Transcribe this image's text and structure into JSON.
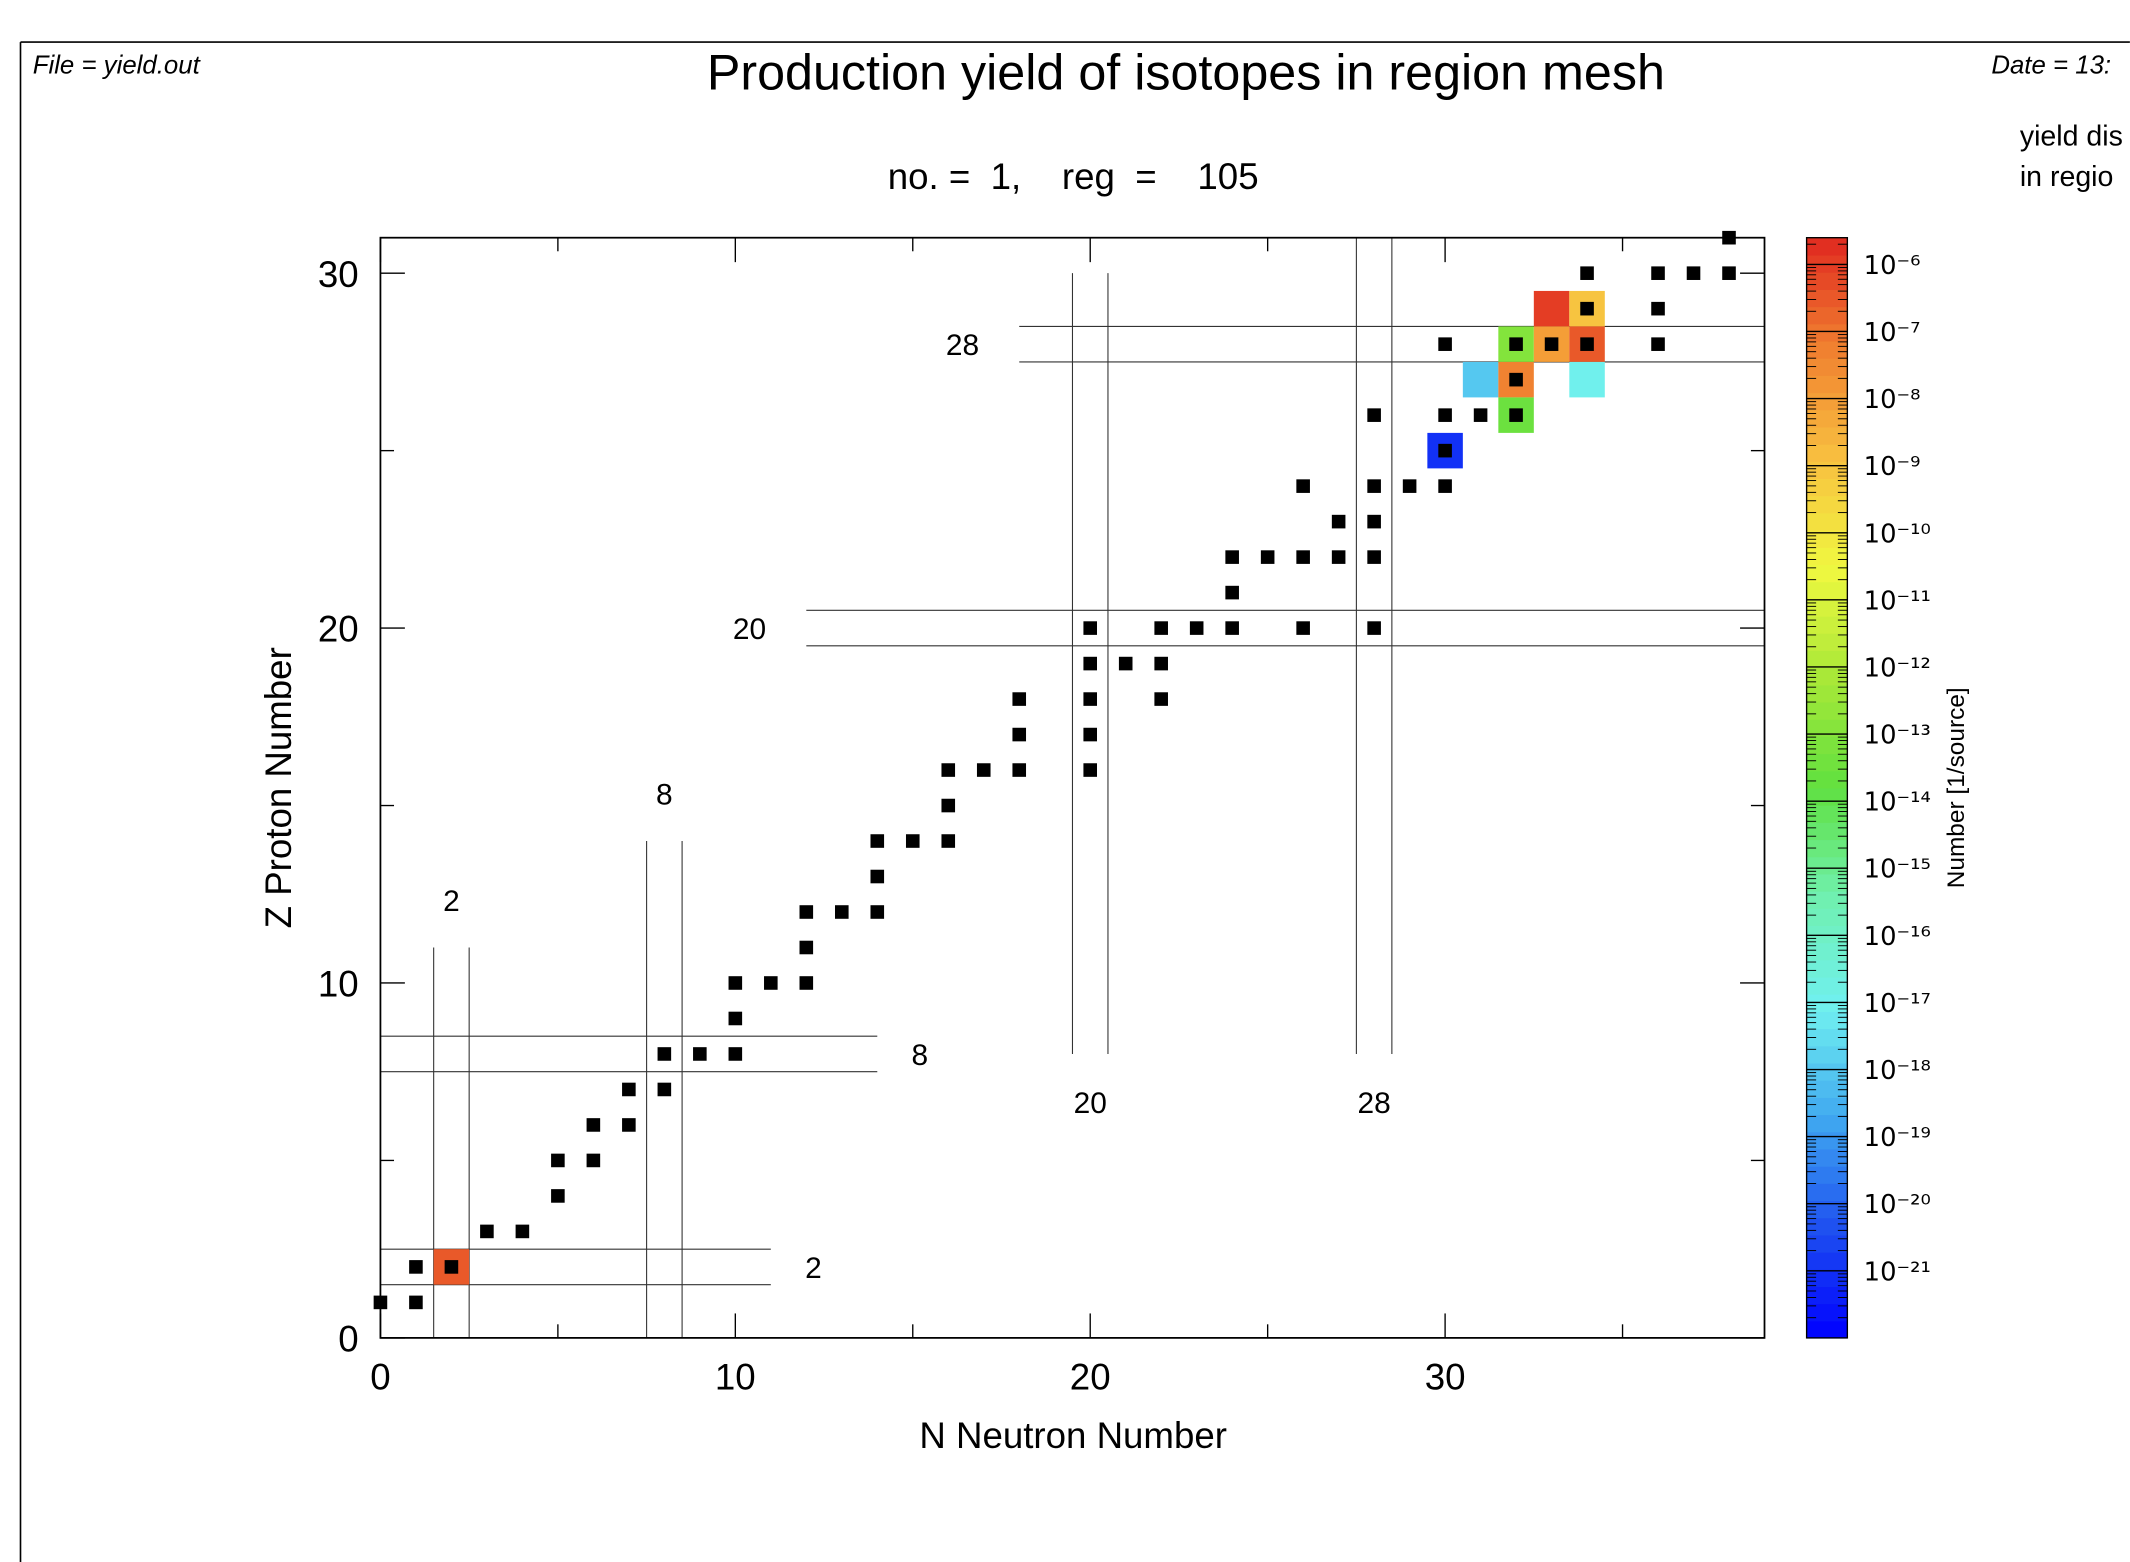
{
  "chart_data": {
    "type": "scatter",
    "file_label": "File = yield.out",
    "date_label": "Date = 13:",
    "title": "Production yield of isotopes in region mesh",
    "subtitle": "no. =  1,    reg  =    105",
    "side_text": [
      "yield dis",
      "in regio"
    ],
    "xlabel": "N Neutron Number",
    "ylabel": "Z Proton Number",
    "xlim": [
      0,
      39
    ],
    "ylim": [
      0,
      31
    ],
    "xticks": [
      0,
      10,
      20,
      30
    ],
    "yticks": [
      0,
      10,
      20,
      30
    ],
    "xminor": [
      5,
      15,
      25,
      35
    ],
    "yminor": [
      5,
      15,
      25
    ],
    "magic_numbers": [
      2,
      8,
      20,
      28
    ],
    "series": [
      {
        "color": "#000000",
        "x": [
          0,
          1,
          1,
          2,
          3,
          4,
          5,
          5,
          6,
          6,
          7,
          7,
          8,
          8,
          9,
          10,
          10,
          10,
          11,
          12,
          12,
          12,
          13,
          14,
          14,
          14,
          15,
          16,
          16,
          16,
          17,
          18,
          18,
          18,
          20,
          20,
          20,
          20,
          21,
          22,
          22,
          20,
          22,
          23,
          24,
          24,
          24,
          25,
          26,
          26,
          27,
          27,
          28,
          28,
          28,
          26,
          28,
          29,
          30,
          30,
          28,
          30,
          31,
          32,
          32,
          30,
          32,
          33,
          34,
          36,
          34,
          36,
          34,
          36,
          37,
          38,
          38
        ],
        "values": [
          1,
          1,
          2,
          2,
          3,
          3,
          4,
          5,
          5,
          6,
          6,
          7,
          7,
          8,
          8,
          8,
          9,
          10,
          10,
          10,
          11,
          12,
          12,
          12,
          13,
          14,
          14,
          14,
          15,
          16,
          16,
          16,
          17,
          18,
          16,
          17,
          18,
          19,
          19,
          19,
          18,
          20,
          20,
          20,
          20,
          21,
          22,
          22,
          22,
          20,
          22,
          23,
          22,
          23,
          24,
          24,
          20,
          24,
          24,
          25,
          26,
          26,
          26,
          26,
          27,
          28,
          28,
          28,
          28,
          28,
          29,
          29,
          30,
          30,
          30,
          30,
          31
        ]
      }
    ],
    "cells": {
      "x": [
        2,
        33,
        34,
        32,
        33,
        34,
        31,
        32,
        34,
        32,
        30
      ],
      "y": [
        2,
        29,
        29,
        28,
        28,
        28,
        27,
        27,
        27,
        26,
        25
      ],
      "values": [
        3e-07,
        1e-06,
        1e-09,
        1e-13,
        1e-08,
        3e-07,
        1e-18,
        5e-08,
        1e-17,
        3e-14,
        1e-21
      ]
    },
    "zlog": true,
    "zlim": [
      1e-22,
      2.5e-06
    ],
    "zlabel": "Number [1/source]",
    "zticks": [
      {
        "value": 1e-06,
        "label": "10⁻⁶"
      },
      {
        "value": 1e-07,
        "label": "10⁻⁷"
      },
      {
        "value": 1e-08,
        "label": "10⁻⁸"
      },
      {
        "value": 1e-09,
        "label": "10⁻⁹"
      },
      {
        "value": 1e-10,
        "label": "10⁻¹⁰"
      },
      {
        "value": 1e-11,
        "label": "10⁻¹¹"
      },
      {
        "value": 1e-12,
        "label": "10⁻¹²"
      },
      {
        "value": 1e-13,
        "label": "10⁻¹³"
      },
      {
        "value": 1e-14,
        "label": "10⁻¹⁴"
      },
      {
        "value": 1e-15,
        "label": "10⁻¹⁵"
      },
      {
        "value": 1e-16,
        "label": "10⁻¹⁶"
      },
      {
        "value": 1e-17,
        "label": "10⁻¹⁷"
      },
      {
        "value": 1e-18,
        "label": "10⁻¹⁸"
      },
      {
        "value": 1e-19,
        "label": "10⁻¹⁹"
      },
      {
        "value": 1e-20,
        "label": "10⁻²⁰"
      },
      {
        "value": 1e-21,
        "label": "10⁻²¹"
      }
    ],
    "colormap": [
      "#0000ff",
      "#1e50f0",
      "#40a8f0",
      "#70f0f0",
      "#70f0b0",
      "#60e040",
      "#a8e838",
      "#f0f840",
      "#f8c040",
      "#f08030",
      "#e02820"
    ]
  }
}
